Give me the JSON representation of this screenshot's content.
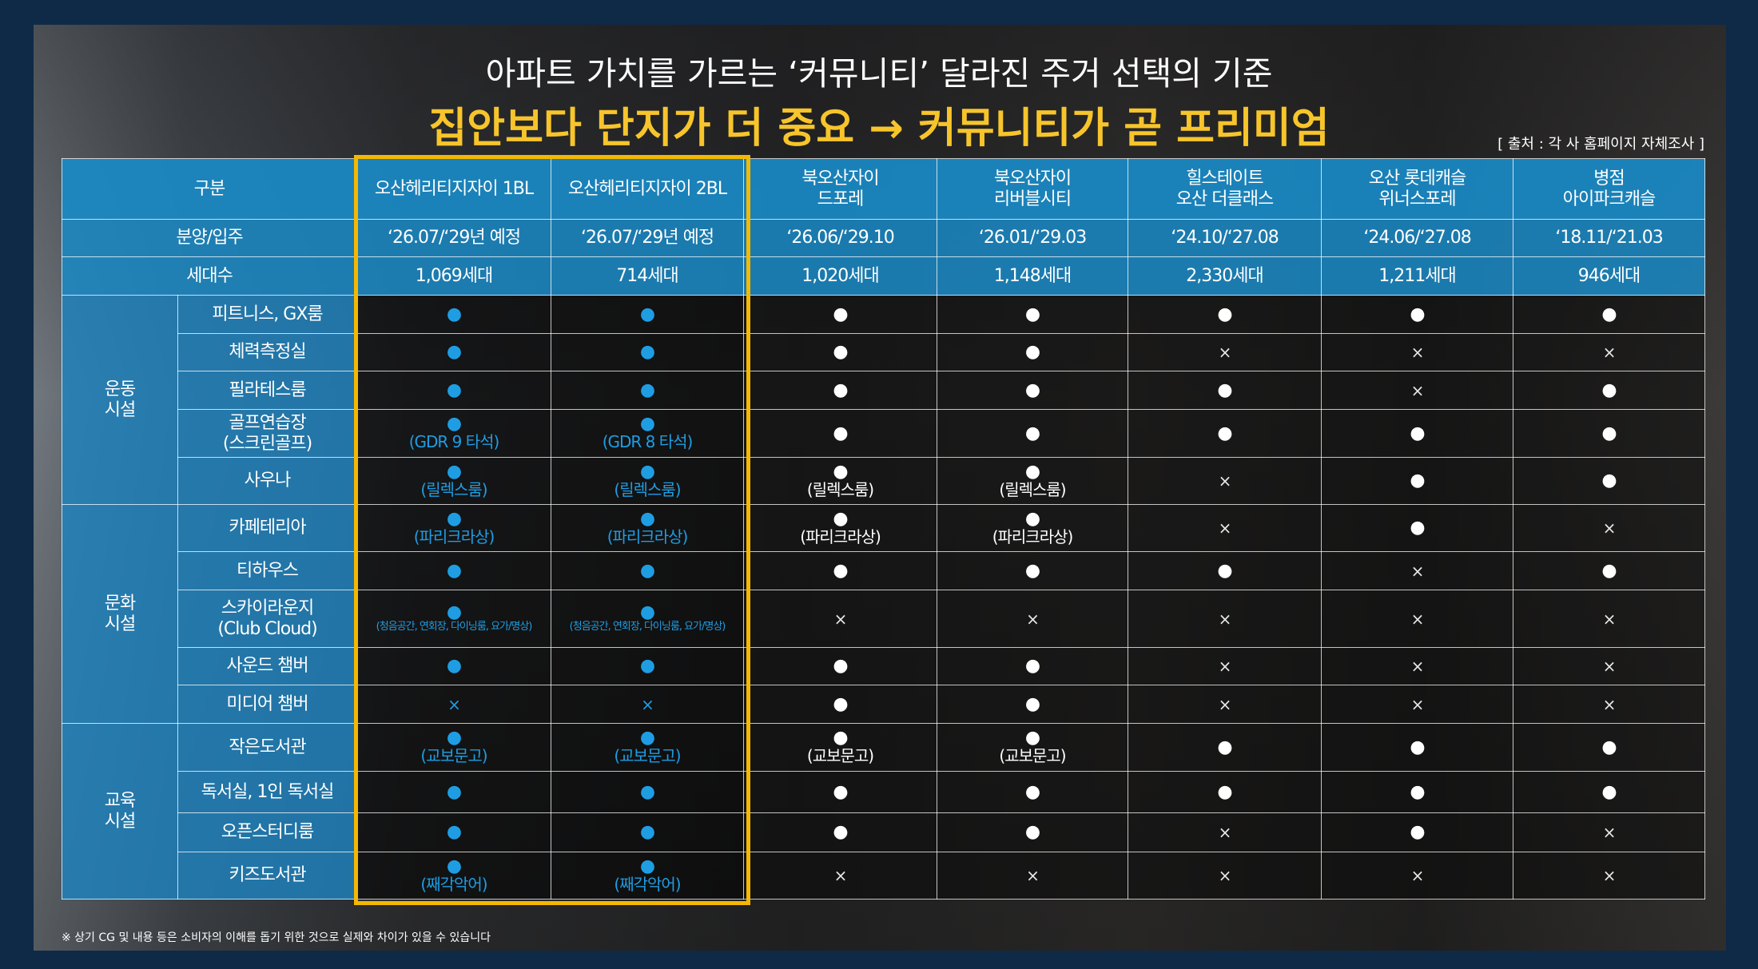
{
  "header": {
    "title": "아파트 가치를 가르는 ‘커뮤니티’ 달라진 주거 선택의 기준",
    "subtitle": "집안보다 단지가 더 중요 → 커뮤니티가 곧 프리미엄",
    "source": "[ 출처 : 각 사 홈페이지 자체조사 ]"
  },
  "table": {
    "corner": "구분",
    "highlight_columns": [
      0,
      1
    ],
    "columns": [
      "오산헤리티지자이 1BL",
      "오산헤리티지자이 2BL",
      "북오산자이\n드포레",
      "북오산자이\n리버블시티",
      "힐스테이트\n오산 더클래스",
      "오산 롯데캐슬\n위너스포레",
      "병점\n아이파크캐슬"
    ],
    "info_rows": [
      {
        "label": "분양/입주",
        "values": [
          "‘26.07/‘29년 예정",
          "‘26.07/‘29년 예정",
          "‘26.06/‘29.10",
          "‘26.01/‘29.03",
          "‘24.10/‘27.08",
          "‘24.06/‘27.08",
          "‘18.11/‘21.03"
        ]
      },
      {
        "label": "세대수",
        "values": [
          "1,069세대",
          "714세대",
          "1,020세대",
          "1,148세대",
          "2,330세대",
          "1,211세대",
          "946세대"
        ]
      }
    ],
    "groups": [
      {
        "label": "운동\n시설",
        "rows": [
          {
            "label": "피트니스, GX룸",
            "cells": [
              {
                "symbol": "●"
              },
              {
                "symbol": "●"
              },
              {
                "symbol": "●"
              },
              {
                "symbol": "●"
              },
              {
                "symbol": "●"
              },
              {
                "symbol": "●"
              },
              {
                "symbol": "●"
              }
            ]
          },
          {
            "label": "체력측정실",
            "cells": [
              {
                "symbol": "●"
              },
              {
                "symbol": "●"
              },
              {
                "symbol": "●"
              },
              {
                "symbol": "●"
              },
              {
                "symbol": "×"
              },
              {
                "symbol": "×"
              },
              {
                "symbol": "×"
              }
            ]
          },
          {
            "label": "필라테스룸",
            "cells": [
              {
                "symbol": "●"
              },
              {
                "symbol": "●"
              },
              {
                "symbol": "●"
              },
              {
                "symbol": "●"
              },
              {
                "symbol": "●"
              },
              {
                "symbol": "×"
              },
              {
                "symbol": "●"
              }
            ]
          },
          {
            "label": "골프연습장\n(스크린골프)",
            "cells": [
              {
                "symbol": "●",
                "note": "(GDR 9 타석)"
              },
              {
                "symbol": "●",
                "note": "(GDR 8 타석)"
              },
              {
                "symbol": "●"
              },
              {
                "symbol": "●"
              },
              {
                "symbol": "●"
              },
              {
                "symbol": "●"
              },
              {
                "symbol": "●"
              }
            ]
          },
          {
            "label": "사우나",
            "cells": [
              {
                "symbol": "●",
                "note": "(릴렉스룸)"
              },
              {
                "symbol": "●",
                "note": "(릴렉스룸)"
              },
              {
                "symbol": "●",
                "note": "(릴렉스룸)"
              },
              {
                "symbol": "●",
                "note": "(릴렉스룸)"
              },
              {
                "symbol": "×"
              },
              {
                "symbol": "●"
              },
              {
                "symbol": "●"
              }
            ]
          }
        ]
      },
      {
        "label": "문화\n시설",
        "rows": [
          {
            "label": "카페테리아",
            "cells": [
              {
                "symbol": "●",
                "note": "(파리크라상)"
              },
              {
                "symbol": "●",
                "note": "(파리크라상)"
              },
              {
                "symbol": "●",
                "note": "(파리크라상)"
              },
              {
                "symbol": "●",
                "note": "(파리크라상)"
              },
              {
                "symbol": "×"
              },
              {
                "symbol": "●"
              },
              {
                "symbol": "×"
              }
            ]
          },
          {
            "label": "티하우스",
            "cells": [
              {
                "symbol": "●"
              },
              {
                "symbol": "●"
              },
              {
                "symbol": "●"
              },
              {
                "symbol": "●"
              },
              {
                "symbol": "●"
              },
              {
                "symbol": "×"
              },
              {
                "symbol": "●"
              }
            ]
          },
          {
            "label": "스카이라운지\n(Club Cloud)",
            "cells": [
              {
                "symbol": "●",
                "note": "(청음공간, 연회장, 다이닝룸, 요가/명상)"
              },
              {
                "symbol": "●",
                "note": "(청음공간, 연회장, 다이닝룸, 요가/명상)"
              },
              {
                "symbol": "×"
              },
              {
                "symbol": "×"
              },
              {
                "symbol": "×"
              },
              {
                "symbol": "×"
              },
              {
                "symbol": "×"
              }
            ]
          },
          {
            "label": "사운드 챔버",
            "cells": [
              {
                "symbol": "●"
              },
              {
                "symbol": "●"
              },
              {
                "symbol": "●"
              },
              {
                "symbol": "●"
              },
              {
                "symbol": "×"
              },
              {
                "symbol": "×"
              },
              {
                "symbol": "×"
              }
            ]
          },
          {
            "label": "미디어 챔버",
            "cells": [
              {
                "symbol": "×"
              },
              {
                "symbol": "×"
              },
              {
                "symbol": "●"
              },
              {
                "symbol": "●"
              },
              {
                "symbol": "×"
              },
              {
                "symbol": "×"
              },
              {
                "symbol": "×"
              }
            ]
          }
        ]
      },
      {
        "label": "교육\n시설",
        "rows": [
          {
            "label": "작은도서관",
            "cells": [
              {
                "symbol": "●",
                "note": "(교보문고)"
              },
              {
                "symbol": "●",
                "note": "(교보문고)"
              },
              {
                "symbol": "●",
                "note": "(교보문고)"
              },
              {
                "symbol": "●",
                "note": "(교보문고)"
              },
              {
                "symbol": "●"
              },
              {
                "symbol": "●"
              },
              {
                "symbol": "●"
              }
            ]
          },
          {
            "label": "독서실, 1인 독서실",
            "cells": [
              {
                "symbol": "●"
              },
              {
                "symbol": "●"
              },
              {
                "symbol": "●"
              },
              {
                "symbol": "●"
              },
              {
                "symbol": "●"
              },
              {
                "symbol": "●"
              },
              {
                "symbol": "●"
              }
            ]
          },
          {
            "label": "오픈스터디룸",
            "cells": [
              {
                "symbol": "●"
              },
              {
                "symbol": "●"
              },
              {
                "symbol": "●"
              },
              {
                "symbol": "●"
              },
              {
                "symbol": "×"
              },
              {
                "symbol": "●"
              },
              {
                "symbol": "×"
              }
            ]
          },
          {
            "label": "키즈도서관",
            "cells": [
              {
                "symbol": "●",
                "note": "(째각악어)"
              },
              {
                "symbol": "●",
                "note": "(째각악어)"
              },
              {
                "symbol": "×"
              },
              {
                "symbol": "×"
              },
              {
                "symbol": "×"
              },
              {
                "symbol": "×"
              },
              {
                "symbol": "×"
              }
            ]
          }
        ]
      }
    ]
  },
  "footnote": "※ 상기 CG 및 내용 등은 소비자의 이해를 돕기 위한 것으로 실제와 차이가 있을 수 있습니다"
}
